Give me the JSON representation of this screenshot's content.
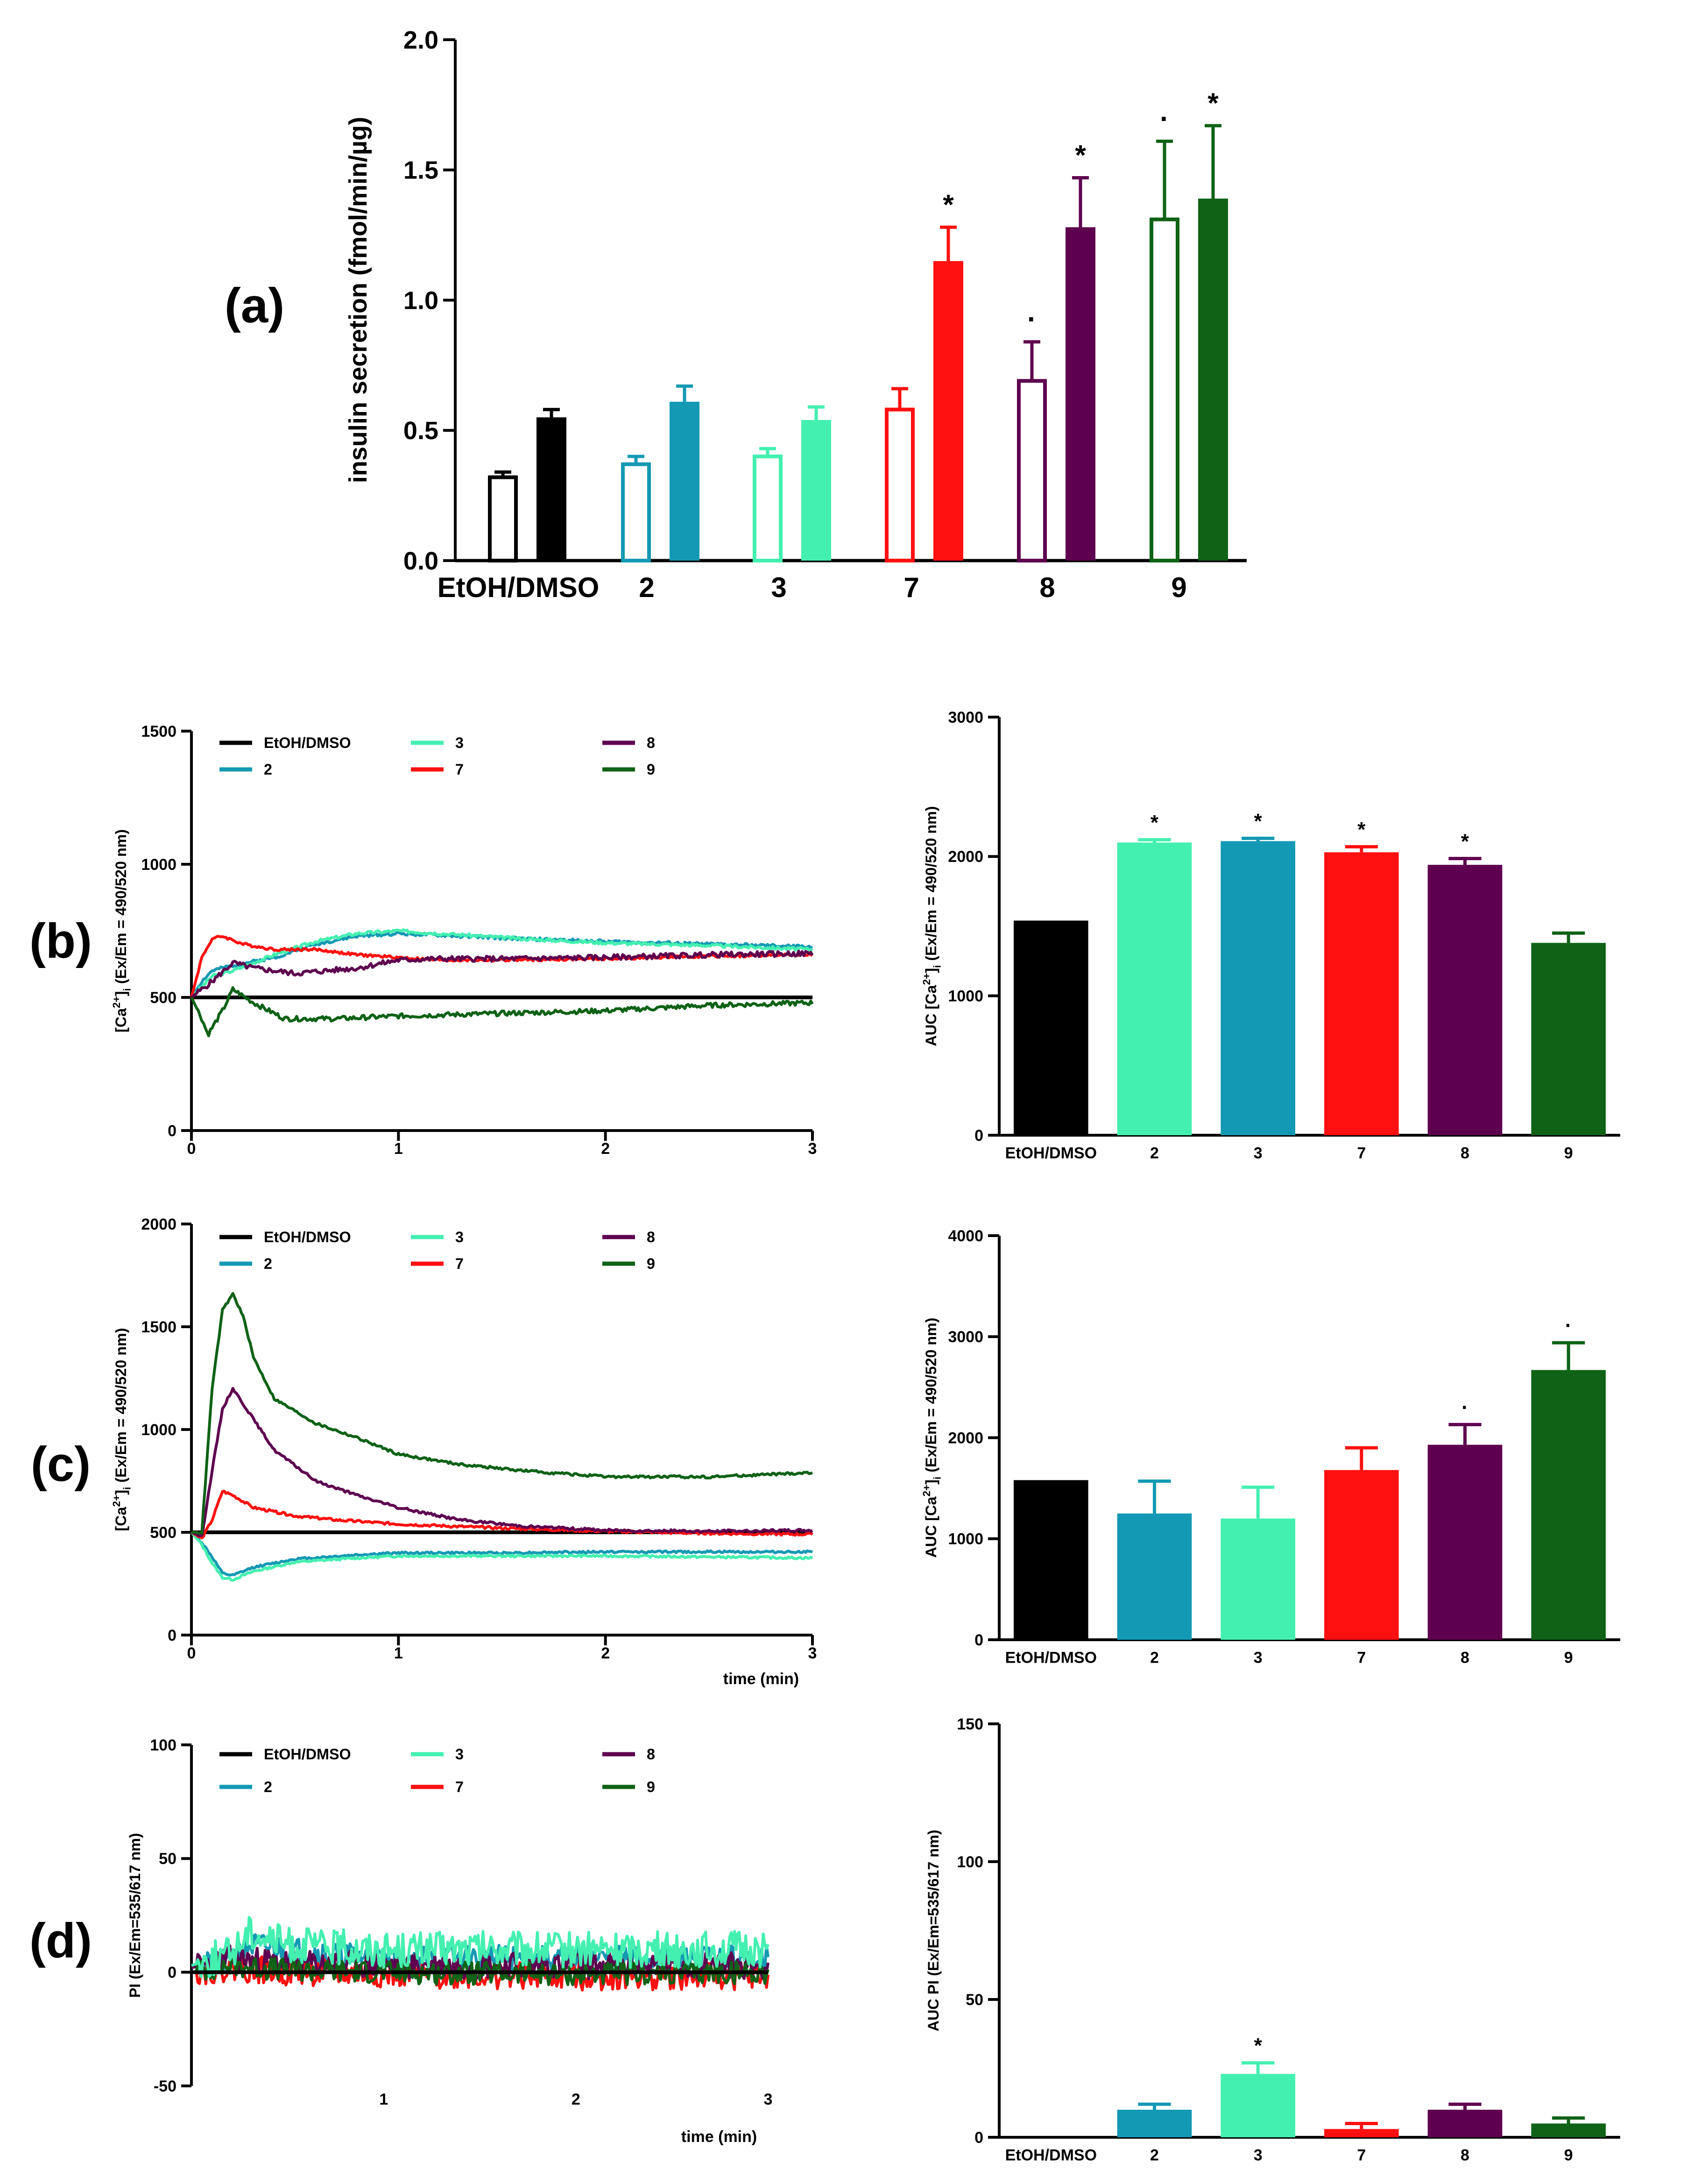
{
  "chart_data": [
    {
      "id": "a",
      "panel_label": "(a)",
      "type": "bar",
      "ylabel": "insulin secretion (fmol/min/µg)",
      "ylim": [
        0,
        2.0
      ],
      "yticks": [
        0.0,
        0.5,
        1.0,
        1.5,
        2.0
      ],
      "ytick_labels": [
        "0.0",
        "0.5",
        "1.0",
        "1.5",
        "2.0"
      ],
      "categories": [
        "EtOH/DMSO",
        "2",
        "3",
        "7",
        "8",
        "9"
      ],
      "colors": [
        "#000000",
        "#1499b4",
        "#44f0b0",
        "#ff1010",
        "#5e004f",
        "#0f6216"
      ],
      "series": [
        {
          "name": "open",
          "style": "open",
          "values": [
            0.32,
            0.37,
            0.4,
            0.58,
            0.69,
            1.31
          ],
          "errors": [
            0.02,
            0.03,
            0.03,
            0.08,
            0.15,
            0.3
          ],
          "marks": [
            "",
            "",
            "",
            "",
            "·",
            "·"
          ]
        },
        {
          "name": "filled",
          "style": "filled",
          "values": [
            0.55,
            0.61,
            0.54,
            1.15,
            1.28,
            1.39
          ],
          "errors": [
            0.03,
            0.06,
            0.05,
            0.13,
            0.19,
            0.28
          ],
          "marks": [
            "",
            "",
            "",
            "*",
            "*",
            "*"
          ]
        }
      ]
    },
    {
      "id": "b_line",
      "panel_label": "(b)",
      "type": "line",
      "ylabel_main": "[Ca",
      "ylabel_sup": "2+",
      "ylabel_close": "]",
      "ylabel_sub": "i",
      "ylabel_rest": " (Ex/Em = 490/520 nm)",
      "xlabel": "",
      "xlim": [
        0,
        3
      ],
      "ylim": [
        0,
        1500
      ],
      "xticks": [
        0,
        1,
        2,
        3
      ],
      "xtick_labels": [
        "0",
        "1",
        "2",
        "3"
      ],
      "yticks": [
        0,
        500,
        1000,
        1500
      ],
      "ytick_labels": [
        "0",
        "500",
        "1000",
        "1500"
      ],
      "legend": [
        "EtOH/DMSO",
        "2",
        "3",
        "7",
        "8",
        "9"
      ],
      "series": [
        {
          "name": "EtOH/DMSO",
          "color": "#000000",
          "noise": 0,
          "seed": 1,
          "x": [
            0,
            3
          ],
          "y": [
            500,
            500
          ]
        },
        {
          "name": "2",
          "color": "#1499b4",
          "noise": 6,
          "seed": 2,
          "x": [
            0,
            0.05,
            0.1,
            0.2,
            0.4,
            0.6,
            0.8,
            1.0,
            1.3,
            1.6,
            2.0,
            2.5,
            3.0
          ],
          "y": [
            500,
            560,
            600,
            620,
            650,
            700,
            730,
            740,
            730,
            720,
            710,
            700,
            690
          ]
        },
        {
          "name": "3",
          "color": "#44f0b0",
          "noise": 6,
          "seed": 3,
          "x": [
            0,
            0.05,
            0.1,
            0.2,
            0.4,
            0.6,
            0.8,
            1.0,
            1.3,
            1.6,
            2.0,
            2.5,
            3.0
          ],
          "y": [
            500,
            540,
            580,
            600,
            660,
            710,
            740,
            750,
            735,
            720,
            705,
            695,
            680
          ]
        },
        {
          "name": "7",
          "color": "#ff1010",
          "noise": 5,
          "seed": 4,
          "x": [
            0,
            0.05,
            0.1,
            0.15,
            0.25,
            0.4,
            0.6,
            0.8,
            1.0,
            1.2,
            1.5,
            2.0,
            2.5,
            3.0
          ],
          "y": [
            500,
            650,
            720,
            730,
            700,
            680,
            680,
            660,
            650,
            640,
            640,
            645,
            655,
            660
          ]
        },
        {
          "name": "8",
          "color": "#5e004f",
          "noise": 10,
          "seed": 5,
          "x": [
            0,
            0.1,
            0.2,
            0.3,
            0.5,
            0.8,
            1.0,
            1.2,
            1.5,
            2.0,
            2.5,
            3.0
          ],
          "y": [
            500,
            560,
            630,
            610,
            590,
            610,
            640,
            645,
            645,
            650,
            660,
            665
          ]
        },
        {
          "name": "9",
          "color": "#0f6216",
          "noise": 9,
          "seed": 6,
          "x": [
            0,
            0.05,
            0.08,
            0.15,
            0.2,
            0.3,
            0.45,
            0.7,
            1.0,
            1.5,
            2.0,
            2.5,
            3.0
          ],
          "y": [
            500,
            420,
            360,
            450,
            530,
            480,
            420,
            420,
            430,
            440,
            450,
            470,
            480
          ]
        }
      ]
    },
    {
      "id": "b_bar",
      "type": "bar",
      "ylabel_main": "AUC [Ca",
      "ylabel_sup": "2+",
      "ylabel_close": "]",
      "ylabel_sub": "i",
      "ylabel_rest": " (Ex/Em = 490/520 nm)",
      "ylim": [
        0,
        3000
      ],
      "yticks": [
        0,
        1000,
        2000,
        3000
      ],
      "ytick_labels": [
        "0",
        "1000",
        "2000",
        "3000"
      ],
      "categories": [
        "EtOH/DMSO",
        "2",
        "3",
        "7",
        "8",
        "9"
      ],
      "colors": [
        "#000000",
        "#44f0b0",
        "#1499b4",
        "#ff1010",
        "#5e004f",
        "#0f6216"
      ],
      "values": [
        1540,
        2100,
        2110,
        2030,
        1940,
        1380
      ],
      "errors": [
        0,
        20,
        20,
        40,
        45,
        70
      ],
      "marks": [
        "",
        "*",
        "*",
        "*",
        "*",
        ""
      ]
    },
    {
      "id": "c_line",
      "panel_label": "(c)",
      "type": "line",
      "ylabel_main": "[Ca",
      "ylabel_sup": "2+",
      "ylabel_close": "]",
      "ylabel_sub": "i",
      "ylabel_rest": " (Ex/Em = 490/520 nm)",
      "xlabel": "time (min)",
      "xlim": [
        0,
        3
      ],
      "ylim": [
        0,
        2000
      ],
      "xticks": [
        0,
        1,
        2,
        3
      ],
      "xtick_labels": [
        "0",
        "1",
        "2",
        "3"
      ],
      "yticks": [
        0,
        500,
        1000,
        1500,
        2000
      ],
      "ytick_labels": [
        "0",
        "500",
        "1000",
        "1500",
        "2000"
      ],
      "legend": [
        "EtOH/DMSO",
        "2",
        "3",
        "7",
        "8",
        "9"
      ],
      "series": [
        {
          "name": "EtOH/DMSO",
          "color": "#000000",
          "noise": 0,
          "seed": 11,
          "x": [
            0,
            3
          ],
          "y": [
            500,
            500
          ]
        },
        {
          "name": "2",
          "color": "#1499b4",
          "noise": 5,
          "seed": 12,
          "x": [
            0,
            0.05,
            0.1,
            0.15,
            0.2,
            0.3,
            0.5,
            0.8,
            1.0,
            1.5,
            2.0,
            2.5,
            3.0
          ],
          "y": [
            500,
            450,
            380,
            300,
            290,
            330,
            370,
            390,
            400,
            400,
            405,
            405,
            405
          ]
        },
        {
          "name": "3",
          "color": "#44f0b0",
          "noise": 5,
          "seed": 13,
          "x": [
            0,
            0.05,
            0.1,
            0.15,
            0.2,
            0.3,
            0.5,
            0.8,
            1.0,
            1.5,
            2.0,
            2.5,
            3.0
          ],
          "y": [
            500,
            440,
            350,
            280,
            270,
            310,
            355,
            375,
            385,
            385,
            385,
            380,
            375
          ]
        },
        {
          "name": "7",
          "color": "#ff1010",
          "noise": 6,
          "seed": 14,
          "x": [
            0,
            0.05,
            0.1,
            0.15,
            0.2,
            0.3,
            0.5,
            0.7,
            1.0,
            1.5,
            2.0,
            2.5,
            3.0
          ],
          "y": [
            500,
            470,
            560,
            700,
            680,
            620,
            580,
            560,
            540,
            520,
            505,
            495,
            490
          ]
        },
        {
          "name": "8",
          "color": "#5e004f",
          "noise": 6,
          "seed": 15,
          "x": [
            0,
            0.05,
            0.1,
            0.15,
            0.2,
            0.3,
            0.4,
            0.6,
            0.8,
            1.0,
            1.3,
            1.6,
            2.0,
            2.5,
            3.0
          ],
          "y": [
            500,
            480,
            800,
            1100,
            1200,
            1050,
            900,
            750,
            680,
            620,
            560,
            530,
            510,
            505,
            510
          ]
        },
        {
          "name": "9",
          "color": "#0f6216",
          "noise": 6,
          "seed": 16,
          "x": [
            0,
            0.05,
            0.1,
            0.15,
            0.2,
            0.25,
            0.3,
            0.4,
            0.6,
            0.8,
            1.0,
            1.3,
            1.6,
            2.0,
            2.5,
            3.0
          ],
          "y": [
            500,
            500,
            1200,
            1580,
            1660,
            1550,
            1350,
            1150,
            1030,
            960,
            880,
            830,
            800,
            770,
            770,
            790
          ]
        }
      ]
    },
    {
      "id": "c_bar",
      "type": "bar",
      "ylabel_main": "AUC [Ca",
      "ylabel_sup": "2+",
      "ylabel_close": "]",
      "ylabel_sub": "i",
      "ylabel_rest": " (Ex/Em = 490/520 nm)",
      "ylim": [
        0,
        4000
      ],
      "yticks": [
        0,
        1000,
        2000,
        3000,
        4000
      ],
      "ytick_labels": [
        "0",
        "1000",
        "2000",
        "3000",
        "4000"
      ],
      "categories": [
        "EtOH/DMSO",
        "2",
        "3",
        "7",
        "8",
        "9"
      ],
      "colors": [
        "#000000",
        "#1499b4",
        "#44f0b0",
        "#ff1010",
        "#5e004f",
        "#0f6216"
      ],
      "values": [
        1580,
        1250,
        1200,
        1680,
        1930,
        2670
      ],
      "errors": [
        0,
        320,
        310,
        220,
        200,
        270
      ],
      "marks": [
        "",
        "",
        "",
        "",
        "·",
        "·"
      ]
    },
    {
      "id": "d_line",
      "panel_label": "(d)",
      "type": "line",
      "ylabel": "PI (Ex/Em=535/617 nm)",
      "xlabel": "time (min)",
      "xlim": [
        0,
        3
      ],
      "ylim": [
        -50,
        100
      ],
      "xticks": [
        1,
        2,
        3
      ],
      "xtick_labels": [
        "1",
        "2",
        "3"
      ],
      "yticks": [
        -50,
        0,
        50,
        100
      ],
      "ytick_labels": [
        "-50",
        "0",
        "50",
        "100"
      ],
      "legend": [
        "EtOH/DMSO",
        "2",
        "3",
        "7",
        "8",
        "9"
      ],
      "series": [
        {
          "name": "2",
          "color": "#1499b4",
          "noise": 6,
          "seed": 21,
          "x": [
            0,
            0.2,
            0.3,
            0.5,
            1.0,
            2.0,
            3.0
          ],
          "y": [
            2,
            5,
            12,
            10,
            6,
            6,
            6
          ]
        },
        {
          "name": "7",
          "color": "#ff1010",
          "noise": 6,
          "seed": 22,
          "x": [
            0,
            0.2,
            0.5,
            1.0,
            2.0,
            3.0
          ],
          "y": [
            0,
            2,
            0,
            -1,
            -2,
            -2
          ]
        },
        {
          "name": "8",
          "color": "#5e004f",
          "noise": 6,
          "seed": 23,
          "x": [
            0,
            0.2,
            0.5,
            1.0,
            2.0,
            3.0
          ],
          "y": [
            2,
            6,
            4,
            3,
            3,
            3
          ]
        },
        {
          "name": "9",
          "color": "#0f6216",
          "noise": 5,
          "seed": 24,
          "x": [
            0,
            0.2,
            0.5,
            1.0,
            2.0,
            3.0
          ],
          "y": [
            0,
            3,
            1,
            0,
            -1,
            0
          ]
        },
        {
          "name": "3",
          "color": "#44f0b0",
          "noise": 8,
          "seed": 25,
          "x": [
            0,
            0.2,
            0.3,
            0.5,
            1.0,
            2.0,
            3.0
          ],
          "y": [
            3,
            8,
            18,
            12,
            10,
            10,
            10
          ]
        },
        {
          "name": "EtOH/DMSO",
          "color": "#000000",
          "noise": 0,
          "seed": 26,
          "x": [
            0,
            3
          ],
          "y": [
            0,
            0
          ]
        }
      ]
    },
    {
      "id": "d_bar",
      "type": "bar",
      "ylabel": "AUC PI (Ex/Em=535/617 nm)",
      "ylim": [
        0,
        150
      ],
      "yticks": [
        0,
        50,
        100,
        150
      ],
      "ytick_labels": [
        "0",
        "50",
        "100",
        "150"
      ],
      "categories": [
        "EtOH/DMSO",
        "2",
        "3",
        "7",
        "8",
        "9"
      ],
      "colors": [
        "#000000",
        "#1499b4",
        "#44f0b0",
        "#ff1010",
        "#5e004f",
        "#0f6216"
      ],
      "values": [
        0,
        10,
        23,
        3,
        10,
        5
      ],
      "errors": [
        0,
        2,
        4,
        2,
        2,
        2
      ],
      "marks": [
        "",
        "",
        "*",
        "",
        "",
        ""
      ]
    }
  ]
}
